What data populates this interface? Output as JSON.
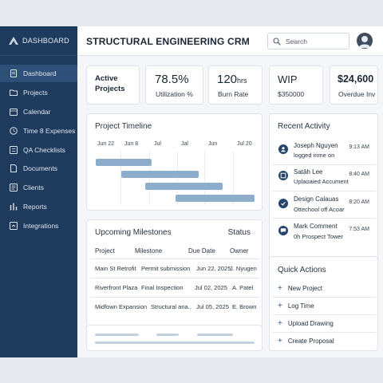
{
  "sidebar": {
    "brand": "DASHBOARD",
    "items": [
      {
        "label": "Dashboard",
        "icon": "document-icon",
        "active": true
      },
      {
        "label": "Projects",
        "icon": "folder-icon"
      },
      {
        "label": "Calendar",
        "icon": "calendar-icon"
      },
      {
        "label": "Time 8 Expenses",
        "icon": "clock-icon"
      },
      {
        "label": "QA Checklists",
        "icon": "checklist-icon"
      },
      {
        "label": "Documents",
        "icon": "folder-icon"
      },
      {
        "label": "Clients",
        "icon": "clients-icon"
      },
      {
        "label": "Reports",
        "icon": "reports-icon"
      },
      {
        "label": "Integrations",
        "icon": "integrations-icon"
      }
    ]
  },
  "header": {
    "title": "STRUCTURAL ENGINEERING CRM",
    "search_placeholder": "Search"
  },
  "kpis": [
    {
      "value": "Active",
      "value2": "Projects"
    },
    {
      "value": "78.5%",
      "label": "Utilization %"
    },
    {
      "value": "120",
      "unit": "hrs",
      "label": "Burn Rate"
    },
    {
      "value": "WIP",
      "label": "$350000"
    },
    {
      "value": "$24,600",
      "label": "Overdue Inv"
    }
  ],
  "timeline": {
    "title": "Project Timeline",
    "months": [
      "Jun 22",
      "Jun 8",
      "Jul",
      "Jal",
      "Jun",
      "Jul 20"
    ],
    "bars": [
      {
        "start": 0.0,
        "end": 0.35
      },
      {
        "start": 0.16,
        "end": 0.65
      },
      {
        "start": 0.31,
        "end": 0.8
      },
      {
        "start": 0.5,
        "end": 1.0
      }
    ]
  },
  "milestones": {
    "title": "Upcoming Milestones",
    "status_label": "Status",
    "columns": [
      "Project",
      "Milestone",
      "Due Date",
      "Owner"
    ],
    "rows": [
      [
        "Main St Retrofit",
        "Permit submission",
        "Jun 22, 2025",
        "J. Nyugen"
      ],
      [
        "Riverfront Plaza",
        "Final Inspection",
        "Jul 02, 2025",
        "A. Patel"
      ],
      [
        "Midfown Expansion",
        "Structural ana..",
        "Jul 05, 2025",
        "E. Brown"
      ]
    ]
  },
  "activity": {
    "title": "Recent Activity",
    "items": [
      {
        "name": "Joseph Nguyen",
        "desc": "logged irime on",
        "time": "9:13 AM",
        "icon": "user-icon"
      },
      {
        "name": "Satâh Lee",
        "desc": "Uplaoaied Accument",
        "time": "8:40 AM",
        "icon": "upload-icon"
      },
      {
        "name": "Design Calauas",
        "desc": "Ottechool off Acoar",
        "time": "8:20 AM",
        "icon": "check-icon"
      },
      {
        "name": "Mark Comment",
        "desc": "0h Prospect Tower",
        "time": "7:53 AM",
        "icon": "comment-icon"
      }
    ]
  },
  "quick_actions": {
    "title": "Quick Actions",
    "items": [
      "New Project",
      "Log Time",
      "Upload Drawing",
      "Create Proposal"
    ]
  },
  "colors": {
    "sidebar": "#1e3a5c",
    "accent": "#25456c",
    "bar": "#8eaccb"
  }
}
